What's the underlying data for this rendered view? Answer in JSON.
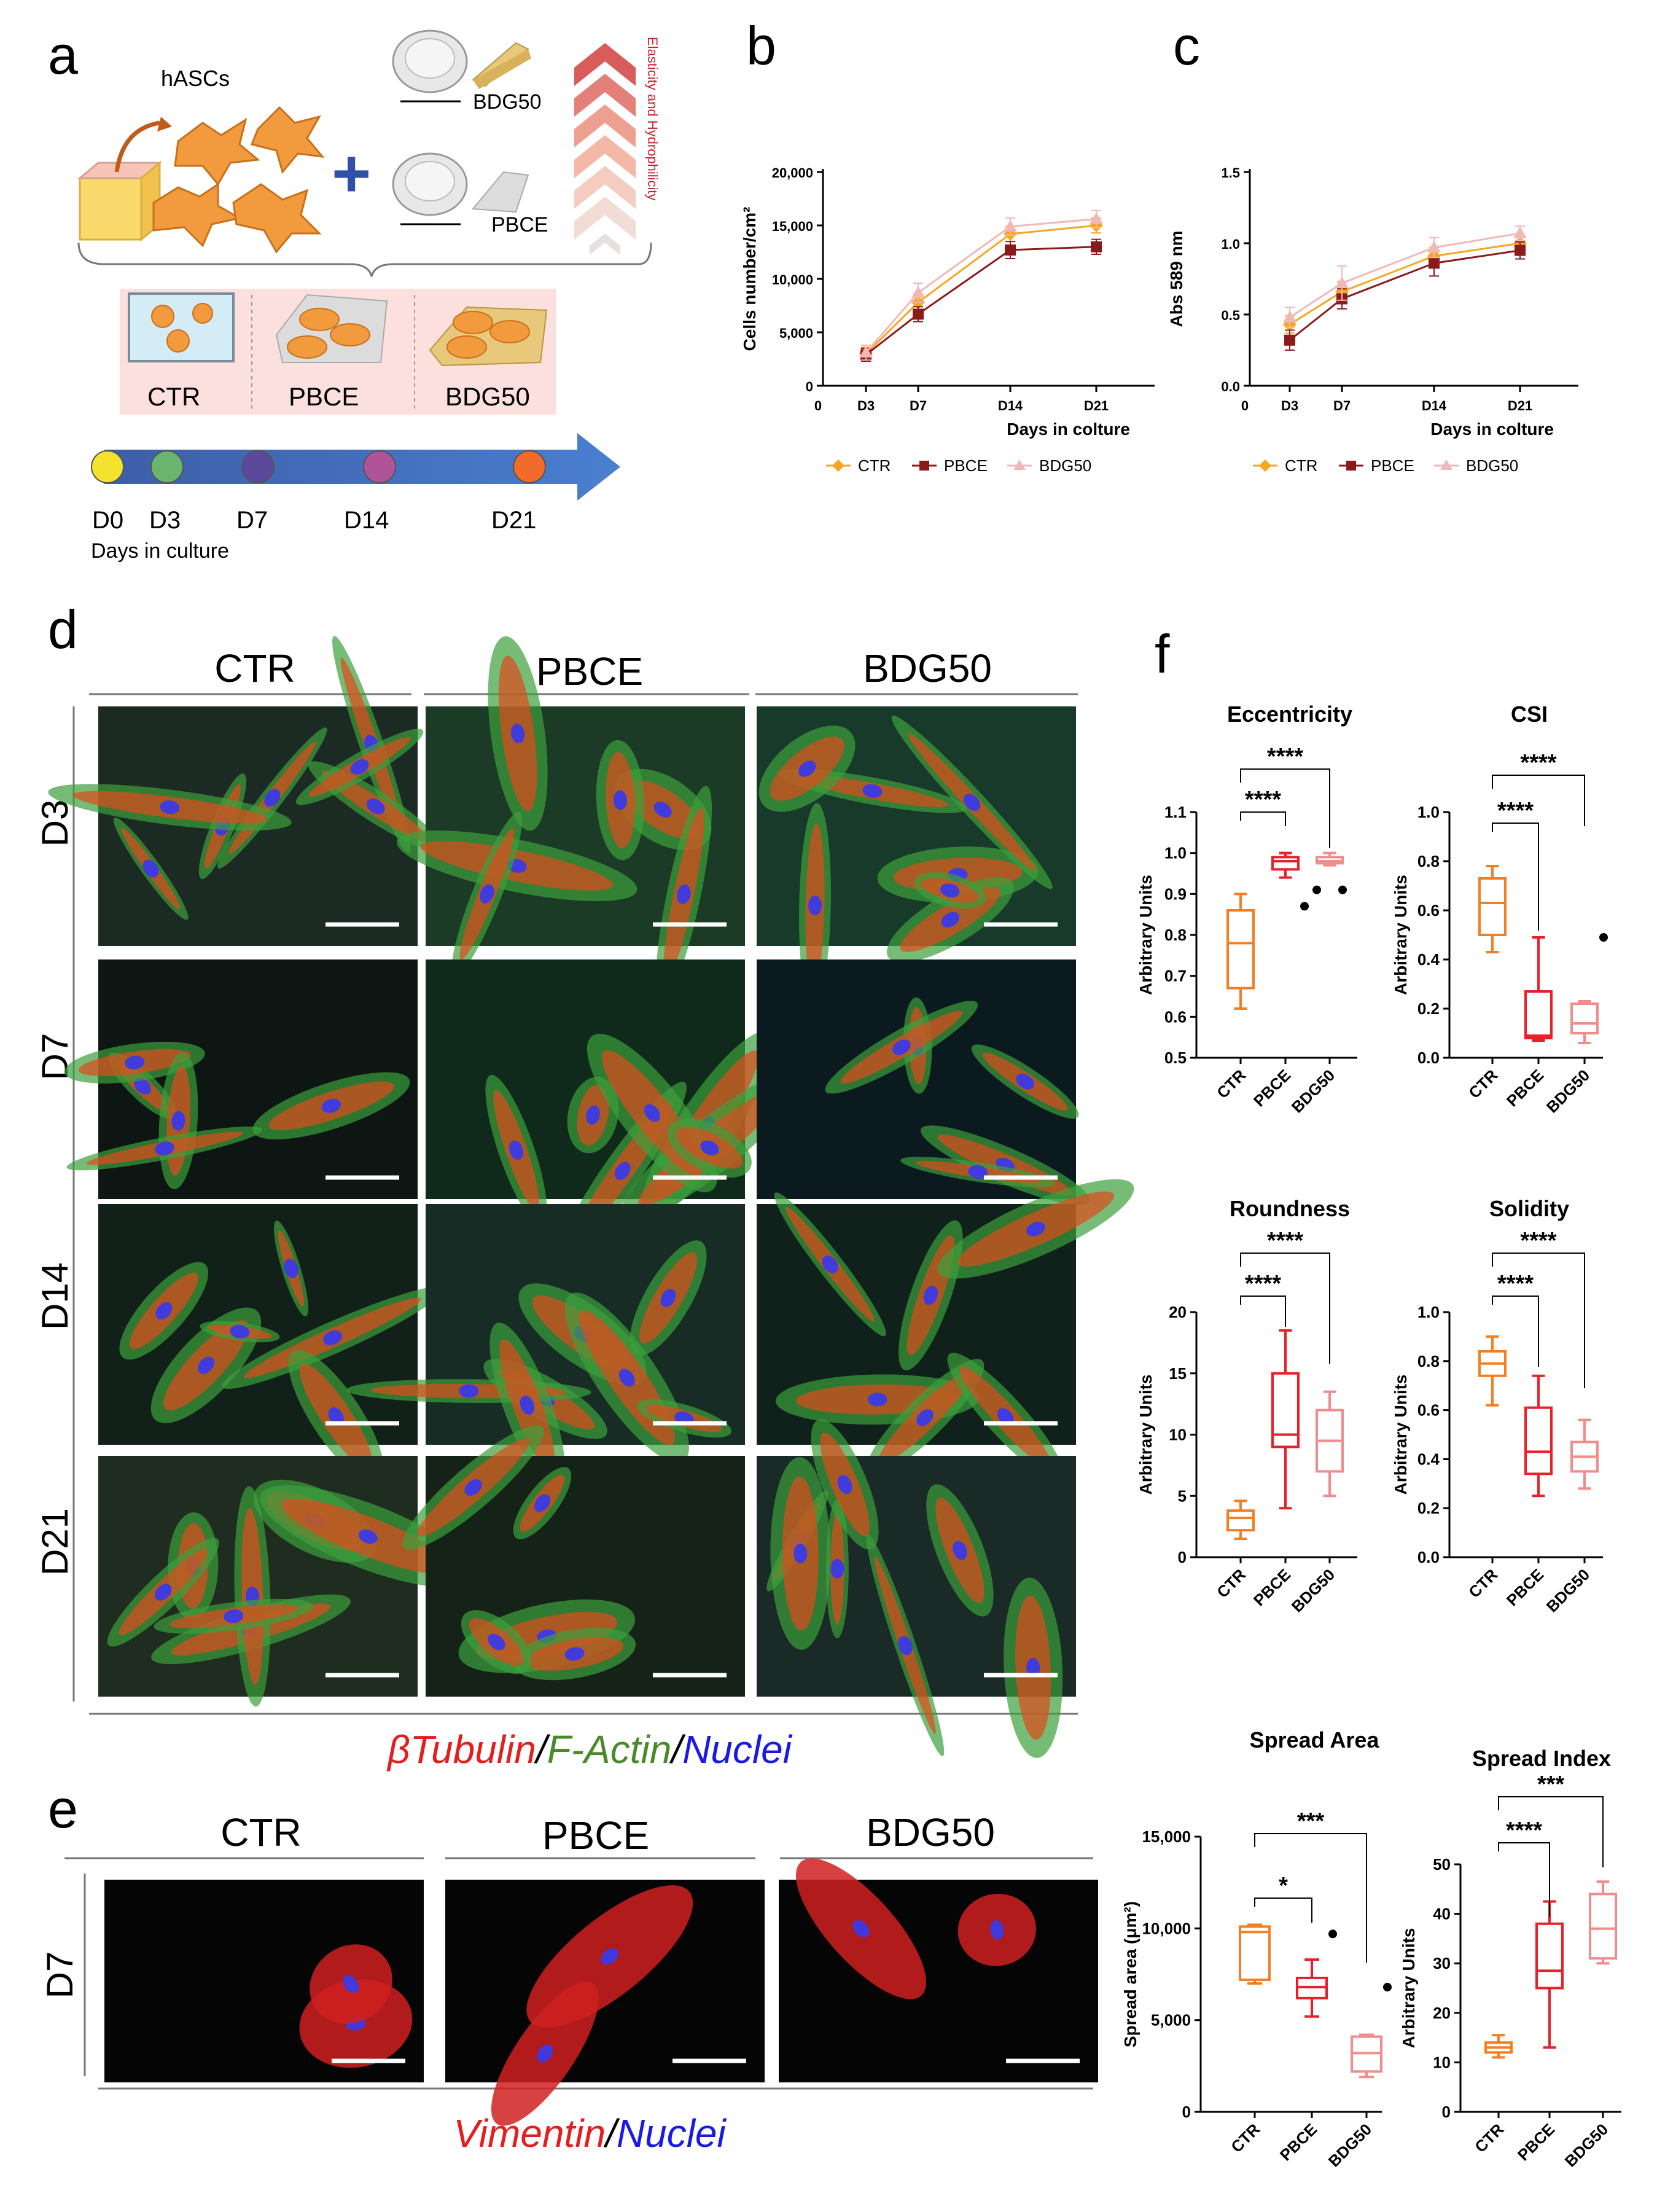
{
  "panel_a": {
    "letter": "a",
    "cells_label": "hASCs",
    "bdg_label": "BDG50",
    "pbce_label": "PBCE",
    "arrow_label": "Elasticity and Hydrophilicity",
    "groups": [
      "CTR",
      "PBCE",
      "BDG50"
    ],
    "timeline": [
      "D0",
      "D3",
      "D7",
      "D14",
      "D21"
    ],
    "timeline_colors": [
      "#f5e22e",
      "#6ab56e",
      "#5b4a9c",
      "#b0549a",
      "#f26b2a"
    ],
    "timeline_caption": "Days in culture"
  },
  "panel_d": {
    "letter": "d",
    "columns": [
      "CTR",
      "PBCE",
      "BDG50"
    ],
    "rows": [
      "D3",
      "D7",
      "D14",
      "D21"
    ],
    "caption_parts": [
      "βTubulin",
      "/",
      "F-Actin",
      "/",
      "Nuclei"
    ]
  },
  "panel_e": {
    "letter": "e",
    "columns": [
      "CTR",
      "PBCE",
      "BDG50"
    ],
    "row": "D7",
    "caption_parts": [
      "Vimentin",
      "/",
      "Nuclei"
    ]
  },
  "panel_f": {
    "letter": "f"
  },
  "colors": {
    "ctr": "#f57f20",
    "pbce": "#e8202a",
    "bdg50": "#f08c8c",
    "line_ctr": "#f5a623",
    "line_pbce": "#8b1a1a",
    "line_bdg50": "#f2b8b8",
    "caption_red": "#e41e1e",
    "caption_green": "#4a8a2a",
    "caption_blue": "#1a1ae6"
  },
  "chart_data": [
    {
      "id": "b",
      "letter": "b",
      "type": "line",
      "x": [
        "D3",
        "D7",
        "D14",
        "D21"
      ],
      "xlabel": "Days in colture",
      "ylabel": "Cells number/cm²",
      "ylim": [
        0,
        20000
      ],
      "yticks": [
        0,
        5000,
        10000,
        15000,
        20000
      ],
      "ytick_labels": [
        "0",
        "5,000",
        "10,000",
        "15,000",
        "20,000"
      ],
      "x_origin_label": "0",
      "series": [
        {
          "name": "CTR",
          "values": [
            3000,
            7800,
            14200,
            15000
          ],
          "err": [
            600,
            800,
            700,
            700
          ]
        },
        {
          "name": "PBCE",
          "values": [
            2900,
            6700,
            12700,
            13000
          ],
          "err": [
            600,
            700,
            800,
            700
          ]
        },
        {
          "name": "BDG50",
          "values": [
            3100,
            8700,
            14900,
            15600
          ],
          "err": [
            700,
            900,
            800,
            800
          ]
        }
      ]
    },
    {
      "id": "c",
      "letter": "c",
      "type": "line",
      "x": [
        "D3",
        "D7",
        "D14",
        "D21"
      ],
      "xlabel": "Days in colture",
      "ylabel": "Abs 589 nm",
      "ylim": [
        0,
        1.5
      ],
      "yticks": [
        0,
        0.5,
        1.0,
        1.5
      ],
      "ytick_labels": [
        "0.0",
        "0.5",
        "1.0",
        "1.5"
      ],
      "x_origin_label": "0",
      "series": [
        {
          "name": "CTR",
          "values": [
            0.43,
            0.66,
            0.91,
            1.0
          ],
          "err": [
            0.06,
            0.07,
            0.06,
            0.05
          ]
        },
        {
          "name": "PBCE",
          "values": [
            0.32,
            0.61,
            0.86,
            0.95
          ],
          "err": [
            0.07,
            0.07,
            0.09,
            0.06
          ]
        },
        {
          "name": "BDG50",
          "values": [
            0.48,
            0.72,
            0.97,
            1.07
          ],
          "err": [
            0.07,
            0.12,
            0.07,
            0.05
          ]
        }
      ]
    },
    {
      "id": "ecc",
      "type": "box",
      "title": "Eccentricity",
      "ylabel": "Arbitrary Units",
      "ylim": [
        0.5,
        1.1
      ],
      "yticks": [
        0.5,
        0.6,
        0.7,
        0.8,
        0.9,
        1.0,
        1.1
      ],
      "ytick_labels": [
        "0.5",
        "0.6",
        "0.7",
        "0.8",
        "0.9",
        "1.0",
        "1.1"
      ],
      "categories": [
        "CTR",
        "PBCE",
        "BDG50"
      ],
      "boxes": [
        {
          "min": 0.62,
          "q1": 0.67,
          "median": 0.78,
          "q3": 0.86,
          "max": 0.9,
          "outliers": []
        },
        {
          "min": 0.94,
          "q1": 0.96,
          "median": 0.98,
          "q3": 0.99,
          "max": 1.0,
          "outliers": [
            0.87
          ]
        },
        {
          "min": 0.97,
          "q1": 0.975,
          "median": 0.98,
          "q3": 0.99,
          "max": 1.0,
          "outliers": [
            0.91,
            0.91
          ]
        }
      ],
      "significance": [
        {
          "from": 0,
          "to": 1,
          "label": "****"
        },
        {
          "from": 0,
          "to": 2,
          "label": "****"
        }
      ]
    },
    {
      "id": "csi",
      "type": "box",
      "title": "CSI",
      "ylabel": "Arbitrary Units",
      "ylim": [
        0,
        1.0
      ],
      "yticks": [
        0,
        0.2,
        0.4,
        0.6,
        0.8,
        1.0
      ],
      "ytick_labels": [
        "0.0",
        "0.2",
        "0.4",
        "0.6",
        "0.8",
        "1.0"
      ],
      "categories": [
        "CTR",
        "PBCE",
        "BDG50"
      ],
      "boxes": [
        {
          "min": 0.43,
          "q1": 0.5,
          "median": 0.63,
          "q3": 0.73,
          "max": 0.78,
          "outliers": []
        },
        {
          "min": 0.07,
          "q1": 0.08,
          "median": 0.09,
          "q3": 0.27,
          "max": 0.49,
          "outliers": []
        },
        {
          "min": 0.06,
          "q1": 0.1,
          "median": 0.14,
          "q3": 0.22,
          "max": 0.23,
          "outliers": [
            0.49
          ]
        }
      ],
      "significance": [
        {
          "from": 0,
          "to": 1,
          "label": "****"
        },
        {
          "from": 0,
          "to": 2,
          "label": "****"
        }
      ]
    },
    {
      "id": "round",
      "type": "box",
      "title": "Roundness",
      "ylabel": "Arbitrary Units",
      "ylim": [
        0,
        20
      ],
      "yticks": [
        0,
        5,
        10,
        15,
        20
      ],
      "ytick_labels": [
        "0",
        "5",
        "10",
        "15",
        "20"
      ],
      "categories": [
        "CTR",
        "PBCE",
        "BDG50"
      ],
      "boxes": [
        {
          "min": 1.5,
          "q1": 2.2,
          "median": 3.2,
          "q3": 3.8,
          "max": 4.6,
          "outliers": []
        },
        {
          "min": 4.0,
          "q1": 9.0,
          "median": 10.0,
          "q3": 15.0,
          "max": 18.5,
          "outliers": []
        },
        {
          "min": 5.0,
          "q1": 7.0,
          "median": 9.5,
          "q3": 12.0,
          "max": 13.5,
          "outliers": []
        }
      ],
      "significance": [
        {
          "from": 0,
          "to": 1,
          "label": "****"
        },
        {
          "from": 0,
          "to": 2,
          "label": "****"
        }
      ]
    },
    {
      "id": "solid",
      "type": "box",
      "title": "Solidity",
      "ylabel": "Arbitrary Units",
      "ylim": [
        0,
        1.0
      ],
      "yticks": [
        0,
        0.2,
        0.4,
        0.6,
        0.8,
        1.0
      ],
      "ytick_labels": [
        "0.0",
        "0.2",
        "0.4",
        "0.6",
        "0.8",
        "1.0"
      ],
      "categories": [
        "CTR",
        "PBCE",
        "BDG50"
      ],
      "boxes": [
        {
          "min": 0.62,
          "q1": 0.74,
          "median": 0.79,
          "q3": 0.84,
          "max": 0.9,
          "outliers": []
        },
        {
          "min": 0.25,
          "q1": 0.34,
          "median": 0.43,
          "q3": 0.61,
          "max": 0.74,
          "outliers": []
        },
        {
          "min": 0.28,
          "q1": 0.35,
          "median": 0.41,
          "q3": 0.47,
          "max": 0.56,
          "outliers": []
        }
      ],
      "significance": [
        {
          "from": 0,
          "to": 1,
          "label": "****"
        },
        {
          "from": 0,
          "to": 2,
          "label": "****"
        }
      ]
    },
    {
      "id": "spread",
      "type": "box",
      "title": "Spread Area",
      "ylabel": "Spread area (μm²)",
      "ylim": [
        0,
        15000
      ],
      "yticks": [
        0,
        5000,
        10000,
        15000
      ],
      "ytick_labels": [
        "0",
        "5,000",
        "10,000",
        "15,000"
      ],
      "categories": [
        "CTR",
        "PBCE",
        "BDG50"
      ],
      "boxes": [
        {
          "min": 7000,
          "q1": 7200,
          "median": 9800,
          "q3": 10100,
          "max": 10200,
          "outliers": []
        },
        {
          "min": 5200,
          "q1": 6200,
          "median": 6800,
          "q3": 7300,
          "max": 8300,
          "outliers": [
            9700
          ]
        },
        {
          "min": 1900,
          "q1": 2200,
          "median": 3200,
          "q3": 4100,
          "max": 4200,
          "outliers": [
            6800
          ]
        }
      ],
      "significance": [
        {
          "from": 0,
          "to": 1,
          "label": "*"
        },
        {
          "from": 0,
          "to": 2,
          "label": "***"
        }
      ]
    },
    {
      "id": "sindex",
      "type": "box",
      "title": "Spread Index",
      "ylabel": "Arbitrary Units",
      "ylim": [
        0,
        50
      ],
      "yticks": [
        0,
        10,
        20,
        30,
        40,
        50
      ],
      "ytick_labels": [
        "0",
        "10",
        "20",
        "30",
        "40",
        "50"
      ],
      "categories": [
        "CTR",
        "PBCE",
        "BDG50"
      ],
      "boxes": [
        {
          "min": 11,
          "q1": 12,
          "median": 13,
          "q3": 14,
          "max": 15.5,
          "outliers": []
        },
        {
          "min": 13,
          "q1": 25,
          "median": 28.5,
          "q3": 38,
          "max": 42.5,
          "outliers": []
        },
        {
          "min": 30,
          "q1": 31,
          "median": 37,
          "q3": 44,
          "max": 46.5,
          "outliers": []
        }
      ],
      "significance": [
        {
          "from": 0,
          "to": 1,
          "label": "****"
        },
        {
          "from": 0,
          "to": 2,
          "label": "***"
        }
      ]
    }
  ]
}
